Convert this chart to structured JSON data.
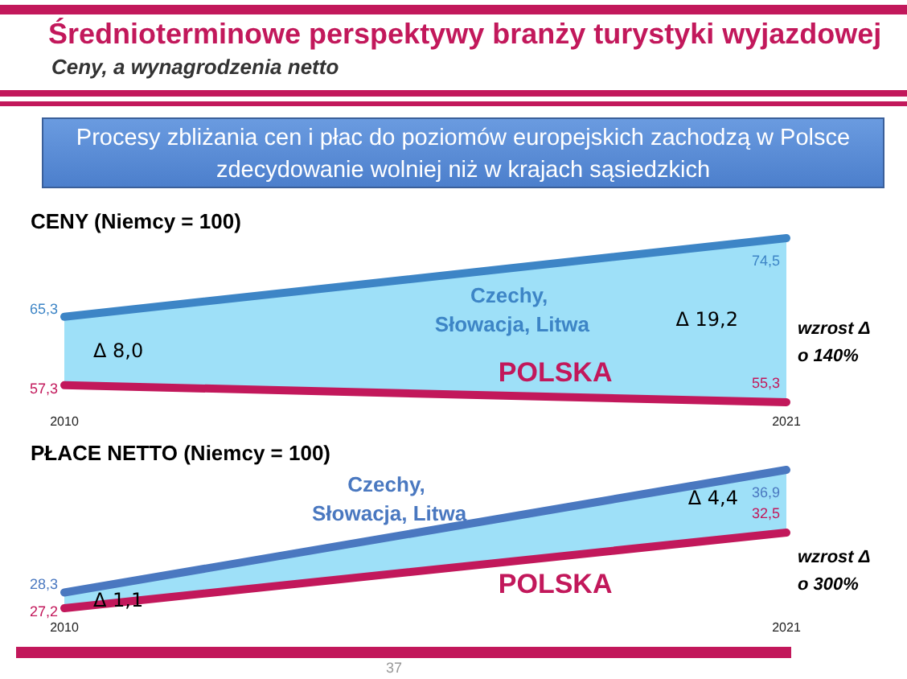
{
  "chart_data": [
    {
      "type": "other",
      "title": "Średnioterminowe perspektywy branży turystyki wyjazdowej",
      "subtitle": "Ceny, a wynagrodzenia netto",
      "annotations": [
        "Procesy zbliżania cen i płac do poziomów europejskich zachodzą w Polsce zdecydowanie wolniej niż w krajach sąsiedzkich"
      ]
    },
    {
      "type": "line",
      "title": "CENY (Niemcy = 100)",
      "categories": [
        "2010",
        "2021"
      ],
      "tick_labels": "x",
      "series": [
        {
          "name": "Czechy, Słowacja, Litwa",
          "color": "#3d85c6",
          "values": [
            65.3,
            74.5
          ],
          "value_labels": [
            "65,3",
            "74,5"
          ],
          "lower": [
            57.3,
            55.3
          ],
          "upper": [
            65.3,
            74.5
          ]
        },
        {
          "name": "POLSKA",
          "color": "#c2185b",
          "values": [
            57.3,
            55.3
          ],
          "value_labels": [
            "57,3",
            "55,3"
          ]
        }
      ],
      "annotations": [
        {
          "text": "Δ 8,0",
          "x": "2010",
          "y": 61.3
        },
        {
          "text": "Δ 19,2",
          "x": "2021",
          "y": 65
        },
        "wzrost Δ\no 140%"
      ]
    },
    {
      "type": "line",
      "title": "PŁACE NETTO (Niemcy = 100)",
      "categories": [
        "2010",
        "2021"
      ],
      "tick_labels": "x",
      "series": [
        {
          "name": "Czechy, Słowacja, Litwa",
          "color": "#4a78c0",
          "values": [
            28.3,
            36.9
          ],
          "value_labels": [
            "28,3",
            "36,9"
          ],
          "lower": [
            27.2,
            32.5
          ],
          "upper": [
            28.3,
            36.9
          ]
        },
        {
          "name": "POLSKA",
          "color": "#c2185b",
          "values": [
            27.2,
            32.5
          ],
          "value_labels": [
            "27,2",
            "32,5"
          ]
        }
      ],
      "annotations": [
        {
          "text": "Δ 1,1",
          "x": "2010",
          "y": 27.75
        },
        {
          "text": "Δ 4,4",
          "x": "2021",
          "y": 34.9
        },
        "wzrost Δ\no 300%",
        "37"
      ]
    }
  ]
}
